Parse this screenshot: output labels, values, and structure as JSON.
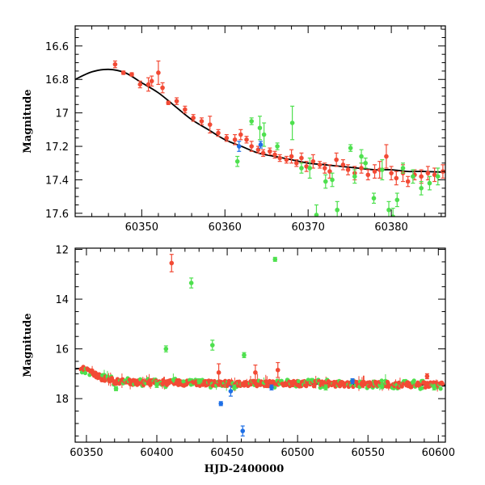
{
  "colors": {
    "red": "#f24a35",
    "green": "#4ee04e",
    "blue": "#1e6fe6",
    "model": "#000000"
  },
  "chart_data": [
    {
      "type": "scatter",
      "xlabel": "",
      "ylabel": "Magnitude",
      "xlim": [
        60342,
        60386.5
      ],
      "ylim": [
        17.62,
        16.48
      ],
      "y_inverted": true,
      "xticks": [
        60350,
        60360,
        60370,
        60380
      ],
      "yticks": [
        16.6,
        16.8,
        17,
        17.2,
        17.4,
        17.6
      ],
      "grid": false,
      "model_curve": {
        "x": [
          60342,
          60344,
          60346,
          60348,
          60350,
          60352,
          60354,
          60356,
          60358,
          60360,
          60362,
          60364,
          60366,
          60368,
          60370,
          60372,
          60374,
          60376,
          60378,
          60380,
          60382,
          60384,
          60386.5
        ],
        "y": [
          16.8,
          16.755,
          16.74,
          16.76,
          16.82,
          16.88,
          16.96,
          17.04,
          17.1,
          17.16,
          17.2,
          17.24,
          17.26,
          17.28,
          17.3,
          17.31,
          17.32,
          17.33,
          17.34,
          17.34,
          17.35,
          17.35,
          17.355
        ]
      },
      "series": [
        {
          "color": "red",
          "points": [
            {
              "x": 60346.8,
              "y": 16.71,
              "err": 0.02
            },
            {
              "x": 60347.8,
              "y": 16.76,
              "err": 0.01
            },
            {
              "x": 60348.8,
              "y": 16.77,
              "err": 0.01
            },
            {
              "x": 60349.8,
              "y": 16.83,
              "err": 0.02
            },
            {
              "x": 60350.8,
              "y": 16.83,
              "err": 0.04
            },
            {
              "x": 60351.2,
              "y": 16.81,
              "err": 0.03
            },
            {
              "x": 60352.0,
              "y": 16.76,
              "err": 0.07
            },
            {
              "x": 60352.5,
              "y": 16.85,
              "err": 0.03
            },
            {
              "x": 60353.2,
              "y": 16.94,
              "err": 0.01
            },
            {
              "x": 60354.2,
              "y": 16.93,
              "err": 0.02
            },
            {
              "x": 60355.2,
              "y": 16.98,
              "err": 0.02
            },
            {
              "x": 60356.2,
              "y": 17.03,
              "err": 0.02
            },
            {
              "x": 60357.2,
              "y": 17.05,
              "err": 0.02
            },
            {
              "x": 60358.2,
              "y": 17.07,
              "err": 0.05
            },
            {
              "x": 60359.2,
              "y": 17.12,
              "err": 0.02
            },
            {
              "x": 60360.2,
              "y": 17.15,
              "err": 0.02
            },
            {
              "x": 60361.2,
              "y": 17.16,
              "err": 0.03
            },
            {
              "x": 60361.9,
              "y": 17.13,
              "err": 0.03
            },
            {
              "x": 60362.6,
              "y": 17.16,
              "err": 0.02
            },
            {
              "x": 60363.2,
              "y": 17.2,
              "err": 0.03
            },
            {
              "x": 60364.0,
              "y": 17.22,
              "err": 0.02
            },
            {
              "x": 60364.6,
              "y": 17.24,
              "err": 0.02
            },
            {
              "x": 60365.4,
              "y": 17.23,
              "err": 0.02
            },
            {
              "x": 60366.0,
              "y": 17.25,
              "err": 0.02
            },
            {
              "x": 60366.6,
              "y": 17.27,
              "err": 0.02
            },
            {
              "x": 60367.4,
              "y": 17.28,
              "err": 0.02
            },
            {
              "x": 60368.0,
              "y": 17.26,
              "err": 0.04
            },
            {
              "x": 60368.6,
              "y": 17.3,
              "err": 0.02
            },
            {
              "x": 60369.2,
              "y": 17.27,
              "err": 0.03
            },
            {
              "x": 60369.8,
              "y": 17.32,
              "err": 0.03
            },
            {
              "x": 60370.6,
              "y": 17.29,
              "err": 0.04
            },
            {
              "x": 60371.4,
              "y": 17.31,
              "err": 0.02
            },
            {
              "x": 60372.0,
              "y": 17.33,
              "err": 0.03
            },
            {
              "x": 60372.6,
              "y": 17.35,
              "err": 0.04
            },
            {
              "x": 60373.4,
              "y": 17.28,
              "err": 0.04
            },
            {
              "x": 60374.2,
              "y": 17.31,
              "err": 0.03
            },
            {
              "x": 60374.8,
              "y": 17.34,
              "err": 0.03
            },
            {
              "x": 60375.6,
              "y": 17.36,
              "err": 0.04
            },
            {
              "x": 60376.4,
              "y": 17.33,
              "err": 0.03
            },
            {
              "x": 60377.2,
              "y": 17.37,
              "err": 0.03
            },
            {
              "x": 60378.0,
              "y": 17.35,
              "err": 0.04
            },
            {
              "x": 60378.6,
              "y": 17.34,
              "err": 0.05
            },
            {
              "x": 60379.4,
              "y": 17.26,
              "err": 0.07
            },
            {
              "x": 60380.0,
              "y": 17.36,
              "err": 0.04
            },
            {
              "x": 60380.6,
              "y": 17.39,
              "err": 0.04
            },
            {
              "x": 60381.4,
              "y": 17.36,
              "err": 0.05
            },
            {
              "x": 60382.0,
              "y": 17.41,
              "err": 0.03
            },
            {
              "x": 60382.8,
              "y": 17.37,
              "err": 0.03
            },
            {
              "x": 60383.6,
              "y": 17.38,
              "err": 0.04
            },
            {
              "x": 60384.4,
              "y": 17.36,
              "err": 0.04
            },
            {
              "x": 60385.2,
              "y": 17.37,
              "err": 0.04
            },
            {
              "x": 60386.2,
              "y": 17.35,
              "err": 0.04
            }
          ]
        },
        {
          "color": "green",
          "points": [
            {
              "x": 60361.5,
              "y": 17.29,
              "err": 0.03
            },
            {
              "x": 60363.2,
              "y": 17.05,
              "err": 0.02
            },
            {
              "x": 60364.2,
              "y": 17.09,
              "err": 0.07
            },
            {
              "x": 60364.7,
              "y": 17.13,
              "err": 0.07
            },
            {
              "x": 60366.3,
              "y": 17.2,
              "err": 0.02
            },
            {
              "x": 60368.1,
              "y": 17.06,
              "err": 0.1
            },
            {
              "x": 60369.2,
              "y": 17.33,
              "err": 0.03
            },
            {
              "x": 60370.2,
              "y": 17.33,
              "err": 0.06
            },
            {
              "x": 60371.0,
              "y": 17.61,
              "err": 0.06
            },
            {
              "x": 60372.1,
              "y": 17.41,
              "err": 0.04
            },
            {
              "x": 60372.9,
              "y": 17.4,
              "err": 0.04
            },
            {
              "x": 60373.5,
              "y": 17.58,
              "err": 0.05
            },
            {
              "x": 60375.1,
              "y": 17.21,
              "err": 0.02
            },
            {
              "x": 60375.6,
              "y": 17.38,
              "err": 0.04
            },
            {
              "x": 60376.4,
              "y": 17.26,
              "err": 0.04
            },
            {
              "x": 60376.9,
              "y": 17.3,
              "err": 0.03
            },
            {
              "x": 60377.9,
              "y": 17.51,
              "err": 0.03
            },
            {
              "x": 60378.9,
              "y": 17.34,
              "err": 0.06
            },
            {
              "x": 60379.7,
              "y": 17.58,
              "err": 0.05
            },
            {
              "x": 60380.2,
              "y": 17.62,
              "err": 0.05
            },
            {
              "x": 60380.7,
              "y": 17.52,
              "err": 0.04
            },
            {
              "x": 60381.4,
              "y": 17.33,
              "err": 0.03
            },
            {
              "x": 60382.6,
              "y": 17.38,
              "err": 0.04
            },
            {
              "x": 60383.6,
              "y": 17.45,
              "err": 0.04
            },
            {
              "x": 60384.6,
              "y": 17.42,
              "err": 0.04
            },
            {
              "x": 60385.6,
              "y": 17.38,
              "err": 0.05
            }
          ]
        },
        {
          "color": "blue",
          "points": [
            {
              "x": 60361.7,
              "y": 17.2,
              "err": 0.03
            },
            {
              "x": 60364.3,
              "y": 17.19,
              "err": 0.02
            }
          ]
        }
      ]
    },
    {
      "type": "scatter",
      "xlabel": "HJD-2400000",
      "ylabel": "Magnitude",
      "xlim": [
        60342,
        60605
      ],
      "ylim": [
        19.75,
        11.95
      ],
      "y_inverted": true,
      "xticks": [
        60350,
        60400,
        60450,
        60500,
        60550,
        60600
      ],
      "yticks": [
        12,
        14,
        16,
        18
      ],
      "grid": false,
      "model_curve": {
        "x": [
          60342,
          60350,
          60360,
          60370,
          60380,
          60400,
          60450,
          60500,
          60550,
          60605
        ],
        "y": [
          16.8,
          16.82,
          17.16,
          17.3,
          17.34,
          17.36,
          17.39,
          17.4,
          17.42,
          17.46
        ]
      },
      "series": [
        {
          "color": "red",
          "points": [
            {
              "x": 60410.5,
              "y": 12.55,
              "err": 0.35
            },
            {
              "x": 60470.0,
              "y": 16.95,
              "err": 0.3
            },
            {
              "x": 60444.0,
              "y": 16.95,
              "err": 0.35
            },
            {
              "x": 60486.0,
              "y": 16.85,
              "err": 0.3
            },
            {
              "x": 60592.0,
              "y": 17.1,
              "err": 0.1
            }
          ]
        },
        {
          "color": "green",
          "points": [
            {
              "x": 60424.5,
              "y": 13.35,
              "err": 0.2
            },
            {
              "x": 60484.0,
              "y": 12.4,
              "err": 0.08
            },
            {
              "x": 60406.5,
              "y": 16.0,
              "err": 0.12
            },
            {
              "x": 60439.5,
              "y": 15.85,
              "err": 0.2
            },
            {
              "x": 60462.0,
              "y": 16.25,
              "err": 0.1
            },
            {
              "x": 60371.0,
              "y": 17.6,
              "err": 0.08
            },
            {
              "x": 60400.0,
              "y": 17.45,
              "err": 0.1
            },
            {
              "x": 60430.0,
              "y": 17.3,
              "err": 0.1
            },
            {
              "x": 60455.0,
              "y": 17.55,
              "err": 0.1
            },
            {
              "x": 60520.0,
              "y": 17.55,
              "err": 0.1
            },
            {
              "x": 60560.0,
              "y": 17.5,
              "err": 0.1
            },
            {
              "x": 60597.0,
              "y": 17.55,
              "err": 0.1
            }
          ]
        },
        {
          "color": "blue",
          "points": [
            {
              "x": 60445.5,
              "y": 18.2,
              "err": 0.08
            },
            {
              "x": 60452.5,
              "y": 17.7,
              "err": 0.2
            },
            {
              "x": 60461.0,
              "y": 19.3,
              "err": 0.2
            },
            {
              "x": 60481.5,
              "y": 17.55,
              "err": 0.1
            },
            {
              "x": 60539.0,
              "y": 17.3,
              "err": 0.1
            }
          ]
        }
      ]
    }
  ]
}
